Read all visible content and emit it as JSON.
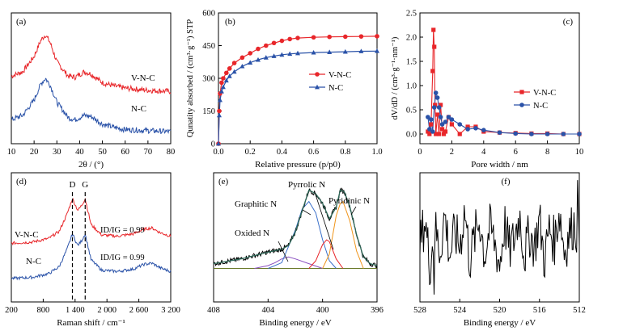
{
  "colors": {
    "vnc": "#e8262a",
    "nc": "#2a52a8",
    "black": "#000000",
    "envelope": "#2f6a5a",
    "baseline": "#6b7a2a"
  },
  "chart_data": [
    {
      "panel": "(a)",
      "type": "line",
      "xlabel": "2θ / (°)",
      "ylabel": "",
      "xlim": [
        10,
        80
      ],
      "xticks": [
        "10",
        "20",
        "30",
        "40",
        "50",
        "60",
        "70",
        "80"
      ],
      "grid": false,
      "series": [
        {
          "name": "V-N-C",
          "x": [
            10,
            15,
            20,
            23,
            25,
            27,
            30,
            35,
            38,
            42,
            45,
            50,
            55,
            60,
            70,
            80
          ],
          "y": [
            0.62,
            0.66,
            0.8,
            0.95,
            1.0,
            0.93,
            0.75,
            0.62,
            0.61,
            0.66,
            0.64,
            0.56,
            0.53,
            0.51,
            0.49,
            0.48
          ]
        },
        {
          "name": "N-C",
          "x": [
            10,
            15,
            20,
            23,
            25,
            27,
            30,
            35,
            38,
            42,
            45,
            50,
            55,
            60,
            70,
            80
          ],
          "y": [
            0.22,
            0.26,
            0.4,
            0.55,
            0.6,
            0.54,
            0.38,
            0.24,
            0.22,
            0.26,
            0.25,
            0.18,
            0.15,
            0.13,
            0.12,
            0.11
          ]
        }
      ]
    },
    {
      "panel": "(b)",
      "type": "line",
      "xlabel": "Relative pressure (p/p0)",
      "ylabel": "Qunatity absorbed / (cm³·g⁻¹) STP",
      "xlim": [
        0,
        1.0
      ],
      "ylim": [
        0,
        600
      ],
      "xticks": [
        "0.0",
        "0.2",
        "0.4",
        "0.6",
        "0.8",
        "1.0"
      ],
      "yticks": [
        "0",
        "150",
        "300",
        "450",
        "600"
      ],
      "legend": "center-right",
      "grid": false,
      "series": [
        {
          "name": "V-N-C",
          "x": [
            0.0,
            0.005,
            0.01,
            0.02,
            0.03,
            0.05,
            0.07,
            0.1,
            0.15,
            0.2,
            0.25,
            0.3,
            0.35,
            0.4,
            0.45,
            0.5,
            0.6,
            0.7,
            0.8,
            0.9,
            1.0
          ],
          "y": [
            0,
            150,
            230,
            280,
            300,
            325,
            345,
            370,
            395,
            415,
            435,
            450,
            462,
            472,
            480,
            485,
            488,
            490,
            491,
            492,
            493
          ]
        },
        {
          "name": "N-C",
          "x": [
            0.0,
            0.005,
            0.01,
            0.02,
            0.03,
            0.05,
            0.07,
            0.1,
            0.15,
            0.2,
            0.25,
            0.3,
            0.35,
            0.4,
            0.45,
            0.5,
            0.6,
            0.7,
            0.8,
            0.9,
            1.0
          ],
          "y": [
            0,
            130,
            200,
            240,
            260,
            290,
            310,
            330,
            355,
            372,
            385,
            395,
            402,
            408,
            412,
            415,
            418,
            420,
            422,
            424,
            425
          ]
        }
      ]
    },
    {
      "panel": "(c)",
      "type": "line",
      "xlabel": "Pore width / nm",
      "ylabel": "dV/dD / (cm³·g⁻¹·nm⁻¹)",
      "xlim": [
        0,
        10
      ],
      "ylim": [
        -0.2,
        2.5
      ],
      "xticks": [
        "0",
        "2",
        "4",
        "6",
        "8",
        "10"
      ],
      "yticks": [
        "0.0",
        "0.5",
        "1.0",
        "1.5",
        "2.0",
        "2.5"
      ],
      "legend": "center-right",
      "grid": false,
      "series": [
        {
          "name": "V-N-C",
          "x": [
            0.5,
            0.6,
            0.7,
            0.8,
            0.85,
            0.9,
            0.95,
            1.0,
            1.1,
            1.2,
            1.3,
            1.4,
            1.5,
            1.6,
            1.8,
            2.0,
            2.5,
            3.0,
            3.5,
            4.0,
            5,
            6,
            7,
            8,
            9,
            10
          ],
          "y": [
            0.05,
            0.0,
            0.2,
            1.3,
            2.15,
            1.8,
            0.6,
            0.0,
            0.4,
            0.0,
            0.6,
            0.1,
            0.0,
            0.05,
            0.35,
            0.2,
            0.0,
            0.15,
            0.15,
            0.05,
            0.03,
            0.02,
            0.01,
            0.01,
            0.0,
            0.0
          ]
        },
        {
          "name": "N-C",
          "x": [
            0.5,
            0.6,
            0.7,
            0.8,
            0.9,
            1.0,
            1.1,
            1.2,
            1.3,
            1.4,
            1.6,
            1.8,
            2.0,
            2.5,
            3.0,
            3.5,
            4.0,
            5,
            6,
            7,
            8,
            9,
            10
          ],
          "y": [
            0.35,
            0.1,
            0.3,
            0.05,
            0.55,
            0.85,
            0.75,
            0.55,
            0.35,
            0.2,
            0.25,
            0.35,
            0.3,
            0.2,
            0.1,
            0.12,
            0.08,
            0.03,
            0.01,
            0.0,
            0.0,
            0.0,
            0.0
          ]
        }
      ]
    },
    {
      "panel": "(d)",
      "type": "line",
      "xlabel": "Raman shift / cm⁻¹",
      "ylabel": "",
      "xlim": [
        200,
        3200
      ],
      "xticks": [
        "200",
        "800",
        "1 400",
        "2 000",
        "2 600",
        "3 200"
      ],
      "peaks": [
        "D",
        "G"
      ],
      "annotations": [
        "ID/IG = 0.99",
        "ID/IG = 0.99"
      ],
      "grid": false,
      "series": [
        {
          "name": "V-N-C",
          "x": [
            200,
            600,
            900,
            1100,
            1250,
            1350,
            1450,
            1520,
            1590,
            1700,
            1900,
            2200,
            2500,
            2700,
            2850,
            3000,
            3200
          ],
          "y": [
            0.5,
            0.51,
            0.54,
            0.6,
            0.75,
            0.88,
            0.78,
            0.82,
            0.88,
            0.66,
            0.57,
            0.56,
            0.58,
            0.62,
            0.63,
            0.59,
            0.56
          ]
        },
        {
          "name": "N-C",
          "x": [
            200,
            600,
            900,
            1100,
            1250,
            1350,
            1450,
            1520,
            1590,
            1700,
            1900,
            2200,
            2500,
            2700,
            2850,
            3000,
            3200
          ],
          "y": [
            0.2,
            0.21,
            0.24,
            0.3,
            0.45,
            0.58,
            0.48,
            0.52,
            0.58,
            0.36,
            0.27,
            0.26,
            0.28,
            0.32,
            0.33,
            0.29,
            0.26
          ]
        }
      ]
    },
    {
      "panel": "(e)",
      "type": "line",
      "xlabel": "Binding energy / eV",
      "ylabel": "",
      "xlim": [
        408,
        396
      ],
      "xticks": [
        "408",
        "404",
        "400",
        "396"
      ],
      "peaks": [
        "Oxided N",
        "Graphitic N",
        "Pyrrolic N",
        "Pyridinic N"
      ],
      "grid": false,
      "series": [
        {
          "name": "envelope",
          "x": [
            408,
            406,
            404,
            403,
            402.5,
            402,
            401.5,
            401,
            400.5,
            400,
            399.5,
            399,
            398.7,
            398.4,
            398,
            397.5,
            397,
            396.5,
            396
          ],
          "y": [
            0.05,
            0.1,
            0.17,
            0.2,
            0.24,
            0.38,
            0.6,
            0.82,
            0.78,
            0.68,
            0.52,
            0.64,
            0.82,
            0.8,
            0.65,
            0.35,
            0.12,
            0.05,
            0.03
          ]
        },
        {
          "name": "Oxided N",
          "x": [
            405,
            404,
            403.5,
            403,
            402.5,
            402,
            401,
            400
          ],
          "y": [
            0.0,
            0.03,
            0.06,
            0.1,
            0.12,
            0.1,
            0.05,
            0.0
          ]
        },
        {
          "name": "Graphitic N",
          "x": [
            404,
            403,
            402,
            401.5,
            401,
            400.5,
            400,
            399.5,
            399
          ],
          "y": [
            0.0,
            0.06,
            0.4,
            0.62,
            0.7,
            0.58,
            0.3,
            0.08,
            0.0
          ]
        },
        {
          "name": "Pyrrolic N",
          "x": [
            401,
            400.5,
            400,
            399.7,
            399.5,
            399,
            398.5
          ],
          "y": [
            0.0,
            0.08,
            0.25,
            0.3,
            0.28,
            0.1,
            0.0
          ]
        },
        {
          "name": "Pyridinic N",
          "x": [
            400,
            399.5,
            399,
            398.7,
            398.5,
            398,
            397.5,
            397
          ],
          "y": [
            0.0,
            0.15,
            0.55,
            0.68,
            0.7,
            0.5,
            0.18,
            0.0
          ]
        }
      ]
    },
    {
      "panel": "(f)",
      "type": "line",
      "xlabel": "Binding energy / eV",
      "ylabel": "",
      "xlim": [
        528,
        512
      ],
      "xticks": [
        "528",
        "524",
        "520",
        "516",
        "512"
      ],
      "grid": false,
      "series": [
        {
          "name": "",
          "x": [
            528,
            527.5,
            527,
            526.5,
            526,
            525.5,
            525,
            524.5,
            524,
            523.5,
            523,
            522.5,
            522,
            521.5,
            521,
            520.5,
            520,
            519.5,
            519,
            518.5,
            518,
            517.5,
            517,
            516.5,
            516,
            515.5,
            515,
            514.5,
            514,
            513.5,
            513,
            512.5,
            512
          ],
          "y": [
            0.4,
            0.7,
            0.2,
            0.6,
            0.35,
            0.75,
            0.3,
            0.55,
            0.4,
            0.8,
            0.25,
            0.5,
            0.7,
            0.3,
            0.6,
            0.45,
            0.2,
            0.65,
            0.35,
            0.5,
            0.75,
            0.3,
            0.55,
            0.4,
            0.7,
            0.25,
            0.6,
            0.45,
            0.8,
            0.35,
            0.55,
            0.65,
            0.5
          ]
        }
      ]
    }
  ],
  "labels": {
    "a_vnc": "V-N-C",
    "a_nc": "N-C",
    "d_vnc": "V-N-C",
    "d_nc": "N-C",
    "d_D": "D",
    "d_G": "G",
    "d_ratio1": "ID/IG = 0.99",
    "d_ratio2": "ID/IG = 0.99",
    "e_oxided": "Oxided N",
    "e_graphitic": "Graphitic N",
    "e_pyrrolic": "Pyrrolic N",
    "e_pyridinic": "Pyridinic N",
    "b_legend_vnc": "V-N-C",
    "b_legend_nc": "N-C",
    "c_legend_vnc": "V-N-C",
    "c_legend_nc": "N-C"
  }
}
